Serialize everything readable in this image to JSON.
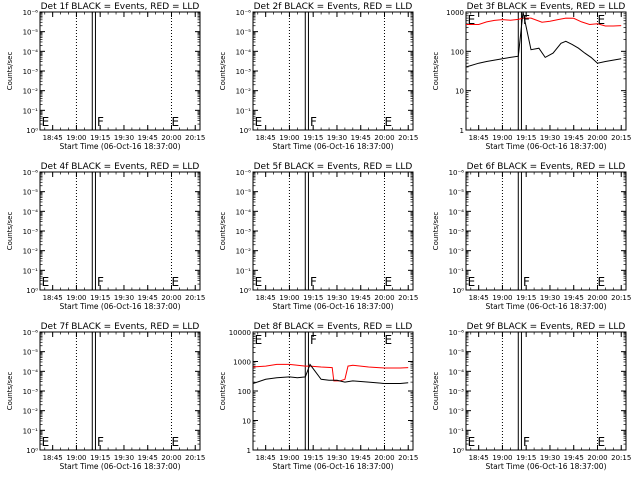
{
  "figure": {
    "common": {
      "xlabel": "Start Time (06-Oct-16 18:37:00)",
      "ylabel": "Counts/sec",
      "xticks": [
        "18:45",
        "19:00",
        "19:15",
        "19:30",
        "19:45",
        "20:00",
        "20:15"
      ],
      "x_range_hhmm": [
        "18:37",
        "20:18"
      ],
      "dotted_vlines_hhmm": [
        "19:00",
        "20:00"
      ],
      "solid_vlines_hhmm": [
        "19:10",
        "19:12"
      ],
      "colors": {
        "events": "#000000",
        "lld": "#ff0000"
      }
    },
    "chart_data": [
      {
        "type": "line",
        "title": "Det 1f BLACK = Events, RED = LLD",
        "ylim": [
          0.9,
          1e-06
        ],
        "yscale": "log",
        "yticks": [
          "10⁰",
          "10⁻¹",
          "10⁻²",
          "10⁻³",
          "10⁻⁴",
          "10⁻⁵",
          "10⁻⁶"
        ],
        "markers": [
          {
            "text": "E",
            "x": "18:38"
          },
          {
            "text": "F",
            "x": "19:13"
          },
          {
            "text": "E",
            "x": "20:00"
          }
        ],
        "series": []
      },
      {
        "type": "line",
        "title": "Det 2f BLACK = Events, RED = LLD",
        "ylim": [
          0.9,
          1e-06
        ],
        "yscale": "log",
        "yticks": [
          "10⁰",
          "10⁻¹",
          "10⁻²",
          "10⁻³",
          "10⁻⁴",
          "10⁻⁵",
          "10⁻⁶"
        ],
        "markers": [
          {
            "text": "E",
            "x": "18:38"
          },
          {
            "text": "F",
            "x": "19:13"
          },
          {
            "text": "E",
            "x": "20:00"
          }
        ],
        "series": []
      },
      {
        "type": "line",
        "title": "Det 3f BLACK = Events, RED = LLD",
        "ylim": [
          1,
          1000
        ],
        "yscale": "log",
        "yticks": [
          "1",
          "10",
          "100",
          "1000"
        ],
        "markers": [
          {
            "text": "E",
            "x": "18:38"
          },
          {
            "text": "F",
            "x": "19:13"
          },
          {
            "text": "E",
            "x": "20:00"
          }
        ],
        "series": [
          {
            "color": "red",
            "x": [
              "18:37",
              "18:45",
              "18:50",
              "18:55",
              "19:00",
              "19:05",
              "19:10",
              "19:13",
              "19:18",
              "19:25",
              "19:30",
              "19:35",
              "19:40",
              "19:45",
              "19:50",
              "19:55",
              "20:00",
              "20:05",
              "20:10",
              "20:15"
            ],
            "y": [
              480,
              480,
              560,
              610,
              640,
              620,
              650,
              700,
              700,
              550,
              580,
              640,
              700,
              690,
              560,
              480,
              500,
              440,
              440,
              450
            ]
          },
          {
            "color": "black",
            "x": [
              "18:37",
              "18:45",
              "18:50",
              "18:55",
              "19:00",
              "19:05",
              "19:10",
              "19:13",
              "19:18",
              "19:23",
              "19:27",
              "19:32",
              "19:37",
              "19:40",
              "19:44",
              "19:48",
              "19:52",
              "19:56",
              "20:00",
              "20:05",
              "20:10",
              "20:15"
            ],
            "y": [
              40,
              50,
              55,
              60,
              65,
              70,
              75,
              1000,
              110,
              120,
              70,
              90,
              160,
              180,
              150,
              120,
              90,
              70,
              50,
              55,
              60,
              65
            ]
          }
        ]
      },
      {
        "type": "line",
        "title": "Det 4f BLACK = Events, RED = LLD",
        "ylim": [
          0.9,
          1e-06
        ],
        "yscale": "log",
        "yticks": [
          "10⁰",
          "10⁻¹",
          "10⁻²",
          "10⁻³",
          "10⁻⁴",
          "10⁻⁵",
          "10⁻⁶"
        ],
        "markers": [
          {
            "text": "E",
            "x": "18:38"
          },
          {
            "text": "F",
            "x": "19:13"
          },
          {
            "text": "E",
            "x": "20:00"
          }
        ],
        "series": []
      },
      {
        "type": "line",
        "title": "Det 5f BLACK = Events, RED = LLD",
        "ylim": [
          0.9,
          1e-06
        ],
        "yscale": "log",
        "yticks": [
          "10⁰",
          "10⁻¹",
          "10⁻²",
          "10⁻³",
          "10⁻⁴",
          "10⁻⁵",
          "10⁻⁶"
        ],
        "markers": [
          {
            "text": "E",
            "x": "18:38"
          },
          {
            "text": "F",
            "x": "19:13"
          },
          {
            "text": "E",
            "x": "20:00"
          }
        ],
        "series": []
      },
      {
        "type": "line",
        "title": "Det 6f BLACK = Events, RED = LLD",
        "ylim": [
          0.9,
          1e-06
        ],
        "yscale": "log",
        "yticks": [
          "10⁰",
          "10⁻¹",
          "10⁻²",
          "10⁻³",
          "10⁻⁴",
          "10⁻⁵",
          "10⁻⁶"
        ],
        "markers": [
          {
            "text": "E",
            "x": "18:38"
          },
          {
            "text": "F",
            "x": "19:13"
          },
          {
            "text": "E",
            "x": "20:00"
          }
        ],
        "series": []
      },
      {
        "type": "line",
        "title": "Det 7f BLACK = Events, RED = LLD",
        "ylim": [
          0.9,
          1e-06
        ],
        "yscale": "log",
        "yticks": [
          "10⁰",
          "10⁻¹",
          "10⁻²",
          "10⁻³",
          "10⁻⁴",
          "10⁻⁵",
          "10⁻⁶"
        ],
        "markers": [
          {
            "text": "E",
            "x": "18:38"
          },
          {
            "text": "F",
            "x": "19:13"
          },
          {
            "text": "E",
            "x": "20:00"
          }
        ],
        "series": []
      },
      {
        "type": "line",
        "title": "Det 8f BLACK = Events, RED = LLD",
        "ylim": [
          1,
          10000
        ],
        "yscale": "log",
        "yticks": [
          "1",
          "10",
          "100",
          "1000",
          "10000"
        ],
        "markers": [
          {
            "text": "E",
            "x": "18:38"
          },
          {
            "text": "F",
            "x": "19:13"
          },
          {
            "text": "E",
            "x": "20:00"
          }
        ],
        "series": [
          {
            "color": "red",
            "x": [
              "18:37",
              "18:45",
              "18:52",
              "19:00",
              "19:05",
              "19:10",
              "19:13",
              "19:20",
              "19:27",
              "19:28",
              "19:32",
              "19:35",
              "19:37",
              "19:40",
              "19:50",
              "20:00",
              "20:10",
              "20:15"
            ],
            "y": [
              650,
              700,
              800,
              800,
              750,
              700,
              700,
              650,
              620,
              220,
              220,
              250,
              700,
              750,
              650,
              600,
              600,
              620
            ]
          },
          {
            "color": "black",
            "x": [
              "18:37",
              "18:45",
              "18:52",
              "19:00",
              "19:05",
              "19:10",
              "19:13",
              "19:20",
              "19:25",
              "19:30",
              "19:35",
              "19:40",
              "19:50",
              "20:00",
              "20:10",
              "20:15"
            ],
            "y": [
              180,
              250,
              280,
              300,
              280,
              300,
              800,
              250,
              230,
              230,
              200,
              220,
              200,
              180,
              180,
              190
            ]
          }
        ]
      },
      {
        "type": "line",
        "title": "Det 9f BLACK = Events, RED = LLD",
        "ylim": [
          0.9,
          1e-06
        ],
        "yscale": "log",
        "yticks": [
          "10⁰",
          "10⁻¹",
          "10⁻²",
          "10⁻³",
          "10⁻⁴",
          "10⁻⁵",
          "10⁻⁶"
        ],
        "markers": [
          {
            "text": "E",
            "x": "18:38"
          },
          {
            "text": "F",
            "x": "19:13"
          },
          {
            "text": "E",
            "x": "20:00"
          }
        ],
        "series": []
      }
    ]
  }
}
